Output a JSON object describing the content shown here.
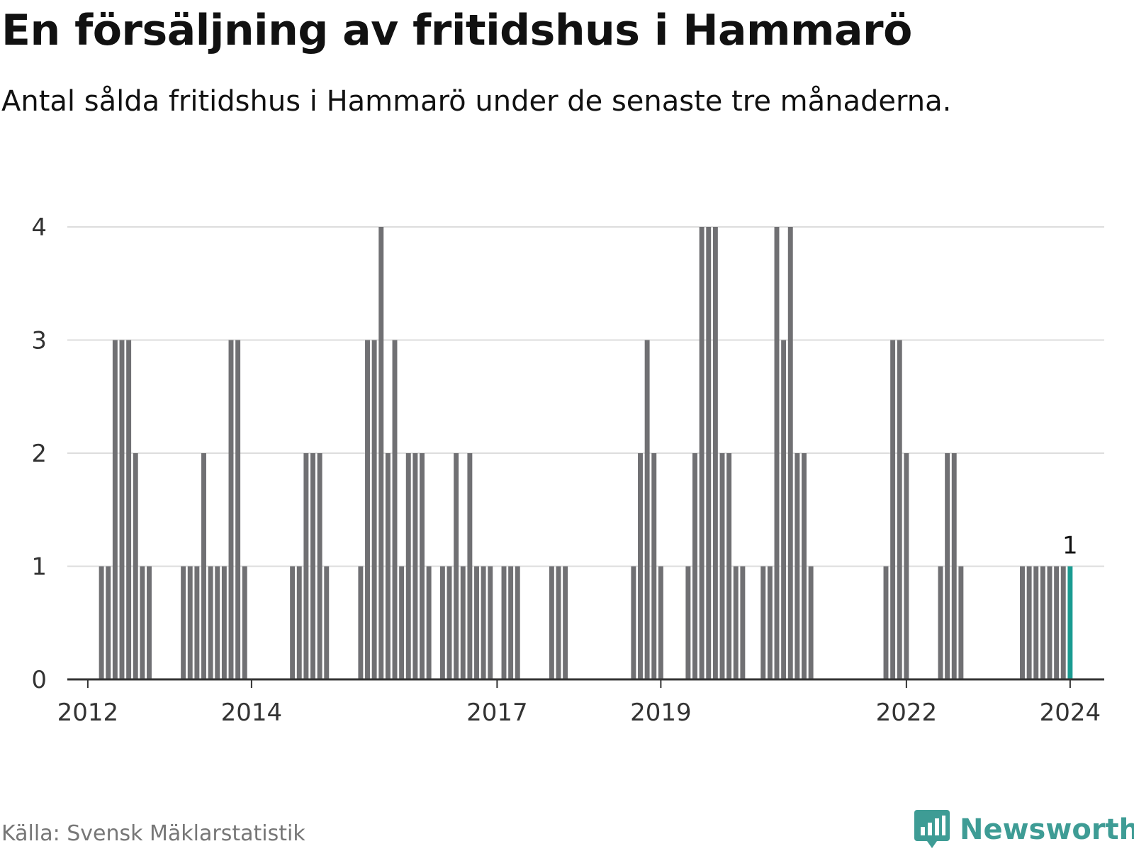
{
  "title": "En försäljning av fritidshus i Hammarö",
  "subtitle": "Antal sålda fritidshus i Hammarö under de senaste tre månaderna.",
  "source": "Källa: Svensk Mäklarstatistik",
  "brand": "Newsworthy",
  "colors": {
    "bar": "#707073",
    "highlight": "#1a9b91",
    "grid": "#dddddd",
    "axis": "#333333",
    "brand": "#3e9c95"
  },
  "chart_data": {
    "type": "bar",
    "title": "En försäljning av fritidshus i Hammarö",
    "xlabel": "",
    "ylabel": "",
    "ylim": [
      0,
      4
    ],
    "yticks": [
      "0",
      "1",
      "2",
      "3",
      "4"
    ],
    "xticks": [
      "2012",
      "2014",
      "2017",
      "2019",
      "2022",
      "2024"
    ],
    "x_start": "2011-10",
    "x_end": "2024-06",
    "grid": true,
    "highlight_label": "1",
    "series": [
      {
        "dates": [
          "2012-03",
          "2012-04",
          "2012-05",
          "2012-06",
          "2012-07",
          "2012-08",
          "2012-09",
          "2012-10",
          "2013-03",
          "2013-04",
          "2013-05",
          "2013-06",
          "2013-07",
          "2013-08",
          "2013-09",
          "2013-10",
          "2013-11",
          "2013-12",
          "2014-07",
          "2014-08",
          "2014-09",
          "2014-10",
          "2014-11",
          "2014-12",
          "2015-05",
          "2015-06",
          "2015-07",
          "2015-08",
          "2015-09",
          "2015-10",
          "2015-11",
          "2015-12",
          "2016-01",
          "2016-02",
          "2016-03",
          "2016-05",
          "2016-06",
          "2016-07",
          "2016-08",
          "2016-09",
          "2016-10",
          "2016-11",
          "2016-12",
          "2017-02",
          "2017-03",
          "2017-04",
          "2017-09",
          "2017-10",
          "2017-11",
          "2018-09",
          "2018-10",
          "2018-11",
          "2018-12",
          "2019-01",
          "2019-05",
          "2019-06",
          "2019-07",
          "2019-08",
          "2019-09",
          "2019-10",
          "2019-11",
          "2019-12",
          "2020-01",
          "2020-04",
          "2020-05",
          "2020-06",
          "2020-07",
          "2020-08",
          "2020-09",
          "2020-10",
          "2020-11",
          "2021-10",
          "2021-11",
          "2021-12",
          "2022-01",
          "2022-06",
          "2022-07",
          "2022-08",
          "2022-09",
          "2023-06",
          "2023-07",
          "2023-08",
          "2023-09",
          "2023-10",
          "2023-11",
          "2023-12",
          "2024-01"
        ],
        "values": [
          1,
          1,
          3,
          3,
          3,
          2,
          1,
          1,
          1,
          1,
          1,
          2,
          1,
          1,
          1,
          3,
          3,
          1,
          1,
          1,
          2,
          2,
          2,
          1,
          1,
          3,
          3,
          4,
          2,
          3,
          1,
          2,
          2,
          2,
          1,
          1,
          1,
          2,
          1,
          2,
          1,
          1,
          1,
          1,
          1,
          1,
          1,
          1,
          1,
          1,
          2,
          3,
          2,
          1,
          1,
          2,
          4,
          4,
          4,
          2,
          2,
          1,
          1,
          1,
          1,
          4,
          3,
          4,
          2,
          2,
          1,
          1,
          3,
          3,
          2,
          1,
          2,
          2,
          1,
          1,
          1,
          1,
          1,
          1,
          1,
          1,
          1
        ]
      }
    ]
  }
}
